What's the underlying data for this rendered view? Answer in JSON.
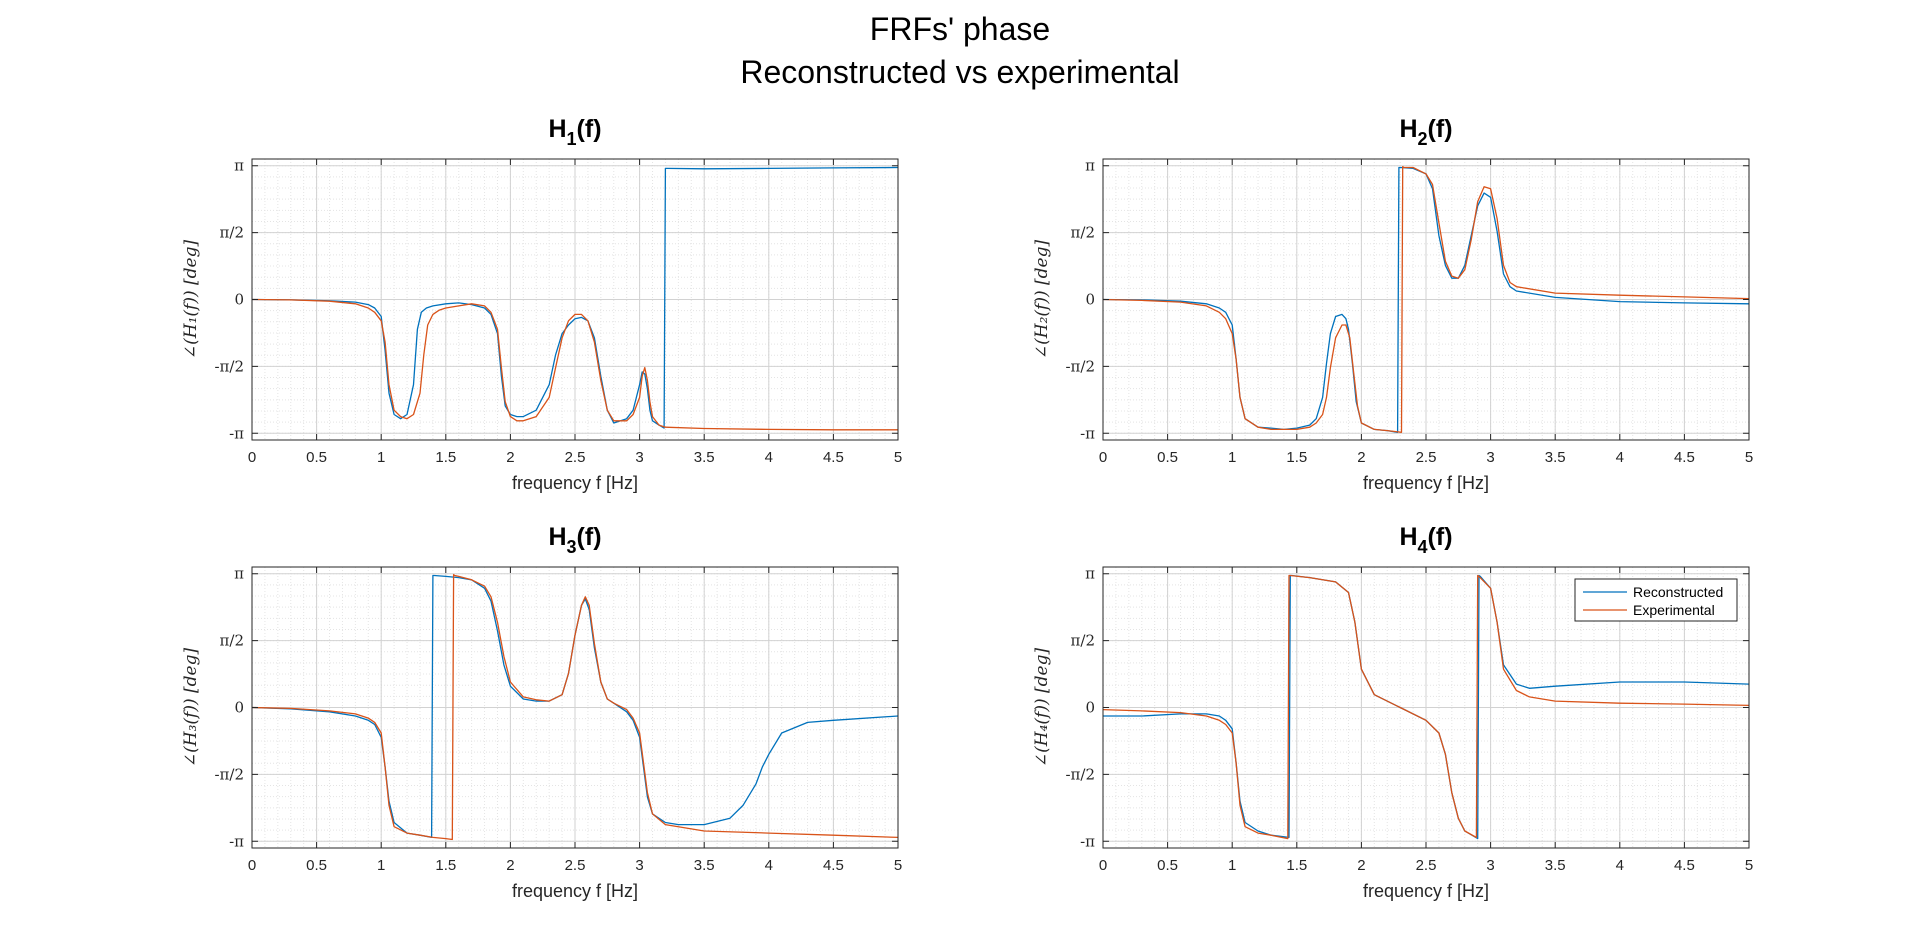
{
  "figure": {
    "title_line1": "FRFs' phase",
    "title_line2": "Reconstructed vs experimental"
  },
  "colors": {
    "reconstructed": "#0072BD",
    "experimental": "#D95319"
  },
  "legend": {
    "entries": [
      "Reconstructed",
      "Experimental"
    ],
    "location": "top-right of H4 panel"
  },
  "chart_data": [
    {
      "type": "line",
      "title_base": "H",
      "title_sub": "1",
      "title_tail": "(f)",
      "xlabel": "frequency f [Hz]",
      "ylabel": "∠(H₁(f))   [deg]",
      "xlim": [
        0,
        5
      ],
      "ylim": [
        -3.3,
        3.3
      ],
      "xticks": [
        0,
        0.5,
        1,
        1.5,
        2,
        2.5,
        3,
        3.5,
        4,
        4.5,
        5
      ],
      "xtick_labels": [
        "0",
        "0.5",
        "1",
        "1.5",
        "2",
        "2.5",
        "3",
        "3.5",
        "4",
        "4.5",
        "5"
      ],
      "yticks": [
        -3.1416,
        -1.5708,
        0,
        1.5708,
        3.1416
      ],
      "ytick_labels": [
        "-π",
        "-π/2",
        "0",
        "π/2",
        "π"
      ],
      "grid": true,
      "series": [
        {
          "name": "Reconstructed",
          "x": [
            0,
            0.3,
            0.6,
            0.8,
            0.9,
            0.95,
            1.0,
            1.03,
            1.06,
            1.1,
            1.15,
            1.2,
            1.25,
            1.28,
            1.31,
            1.35,
            1.4,
            1.5,
            1.6,
            1.7,
            1.8,
            1.85,
            1.9,
            1.93,
            1.96,
            2.0,
            2.05,
            2.1,
            2.2,
            2.3,
            2.35,
            2.4,
            2.45,
            2.5,
            2.55,
            2.6,
            2.65,
            2.7,
            2.75,
            2.8,
            2.9,
            2.95,
            3.0,
            3.02,
            3.04,
            3.06,
            3.08,
            3.1,
            3.15,
            3.19,
            3.2,
            3.21,
            3.5,
            4.0,
            4.5,
            5.0
          ],
          "y": [
            0,
            -0.01,
            -0.03,
            -0.06,
            -0.12,
            -0.2,
            -0.4,
            -1.2,
            -2.2,
            -2.7,
            -2.8,
            -2.7,
            -2.0,
            -0.7,
            -0.3,
            -0.2,
            -0.15,
            -0.1,
            -0.08,
            -0.12,
            -0.2,
            -0.35,
            -0.8,
            -1.8,
            -2.5,
            -2.7,
            -2.75,
            -2.75,
            -2.6,
            -2.0,
            -1.3,
            -0.8,
            -0.6,
            -0.45,
            -0.42,
            -0.5,
            -0.9,
            -1.8,
            -2.6,
            -2.9,
            -2.8,
            -2.6,
            -2.0,
            -1.7,
            -1.75,
            -2.1,
            -2.6,
            -2.85,
            -2.95,
            -3.02,
            3.08,
            3.08,
            3.07,
            3.08,
            3.09,
            3.1
          ]
        },
        {
          "name": "Experimental",
          "x": [
            0,
            0.3,
            0.6,
            0.8,
            0.9,
            0.95,
            1.0,
            1.03,
            1.06,
            1.1,
            1.15,
            1.2,
            1.25,
            1.3,
            1.33,
            1.36,
            1.4,
            1.45,
            1.5,
            1.6,
            1.7,
            1.8,
            1.85,
            1.9,
            1.93,
            1.96,
            2.0,
            2.05,
            2.1,
            2.2,
            2.3,
            2.35,
            2.4,
            2.45,
            2.5,
            2.55,
            2.6,
            2.65,
            2.7,
            2.75,
            2.8,
            2.9,
            2.95,
            3.0,
            3.02,
            3.04,
            3.06,
            3.08,
            3.1,
            3.15,
            3.2,
            3.5,
            4.0,
            4.5,
            5.0
          ],
          "y": [
            0,
            -0.01,
            -0.04,
            -0.1,
            -0.2,
            -0.3,
            -0.5,
            -1.0,
            -2.0,
            -2.6,
            -2.75,
            -2.8,
            -2.7,
            -2.2,
            -1.3,
            -0.6,
            -0.35,
            -0.25,
            -0.2,
            -0.15,
            -0.1,
            -0.15,
            -0.3,
            -0.7,
            -1.6,
            -2.4,
            -2.75,
            -2.85,
            -2.85,
            -2.75,
            -2.3,
            -1.6,
            -0.9,
            -0.5,
            -0.35,
            -0.35,
            -0.5,
            -1.0,
            -1.9,
            -2.6,
            -2.85,
            -2.85,
            -2.7,
            -2.3,
            -1.8,
            -1.6,
            -1.9,
            -2.4,
            -2.75,
            -2.95,
            -3.0,
            -3.03,
            -3.05,
            -3.06,
            -3.06
          ]
        }
      ]
    },
    {
      "type": "line",
      "title_base": "H",
      "title_sub": "2",
      "title_tail": "(f)",
      "xlabel": "frequency f [Hz]",
      "ylabel": "∠(H₂(f))   [deg]",
      "xlim": [
        0,
        5
      ],
      "ylim": [
        -3.3,
        3.3
      ],
      "xticks": [
        0,
        0.5,
        1,
        1.5,
        2,
        2.5,
        3,
        3.5,
        4,
        4.5,
        5
      ],
      "xtick_labels": [
        "0",
        "0.5",
        "1",
        "1.5",
        "2",
        "2.5",
        "3",
        "3.5",
        "4",
        "4.5",
        "5"
      ],
      "yticks": [
        -3.1416,
        -1.5708,
        0,
        1.5708,
        3.1416
      ],
      "ytick_labels": [
        "-π",
        "-π/2",
        "0",
        "π/2",
        "π"
      ],
      "grid": true,
      "series": [
        {
          "name": "Reconstructed",
          "x": [
            0,
            0.3,
            0.6,
            0.8,
            0.9,
            0.95,
            1.0,
            1.03,
            1.06,
            1.1,
            1.2,
            1.3,
            1.4,
            1.5,
            1.6,
            1.65,
            1.7,
            1.73,
            1.76,
            1.8,
            1.85,
            1.88,
            1.9,
            1.93,
            1.96,
            2.0,
            2.1,
            2.2,
            2.28,
            2.29,
            2.3,
            2.4,
            2.5,
            2.55,
            2.6,
            2.65,
            2.7,
            2.75,
            2.8,
            2.85,
            2.9,
            2.95,
            3.0,
            3.05,
            3.1,
            3.15,
            3.2,
            3.5,
            4.0,
            4.5,
            5.0
          ],
          "y": [
            0,
            -0.01,
            -0.04,
            -0.1,
            -0.2,
            -0.3,
            -0.6,
            -1.4,
            -2.3,
            -2.8,
            -3.0,
            -3.02,
            -3.05,
            -3.02,
            -2.95,
            -2.8,
            -2.3,
            -1.5,
            -0.8,
            -0.4,
            -0.35,
            -0.45,
            -0.7,
            -1.5,
            -2.4,
            -2.9,
            -3.05,
            -3.08,
            -3.12,
            3.1,
            3.1,
            3.08,
            2.95,
            2.6,
            1.5,
            0.8,
            0.5,
            0.5,
            0.8,
            1.5,
            2.2,
            2.5,
            2.4,
            1.6,
            0.6,
            0.3,
            0.2,
            0.05,
            -0.05,
            -0.08,
            -0.1
          ]
        },
        {
          "name": "Experimental",
          "x": [
            0,
            0.3,
            0.6,
            0.8,
            0.9,
            0.95,
            1.0,
            1.03,
            1.06,
            1.1,
            1.2,
            1.3,
            1.4,
            1.5,
            1.6,
            1.65,
            1.7,
            1.73,
            1.76,
            1.8,
            1.85,
            1.88,
            1.91,
            1.94,
            1.97,
            2.0,
            2.1,
            2.2,
            2.31,
            2.32,
            2.33,
            2.4,
            2.5,
            2.55,
            2.6,
            2.65,
            2.7,
            2.75,
            2.8,
            2.85,
            2.9,
            2.95,
            3.0,
            3.05,
            3.1,
            3.15,
            3.2,
            3.5,
            4.0,
            4.5,
            5.0
          ],
          "y": [
            0,
            -0.02,
            -0.06,
            -0.15,
            -0.3,
            -0.45,
            -0.8,
            -1.4,
            -2.3,
            -2.8,
            -3.0,
            -3.05,
            -3.05,
            -3.05,
            -3.0,
            -2.9,
            -2.7,
            -2.3,
            -1.6,
            -0.9,
            -0.6,
            -0.6,
            -0.9,
            -1.7,
            -2.5,
            -2.9,
            -3.05,
            -3.08,
            -3.12,
            3.12,
            3.1,
            3.1,
            2.95,
            2.7,
            1.8,
            0.9,
            0.55,
            0.5,
            0.7,
            1.4,
            2.3,
            2.65,
            2.6,
            1.9,
            0.8,
            0.4,
            0.3,
            0.15,
            0.1,
            0.06,
            0.02
          ]
        }
      ]
    },
    {
      "type": "line",
      "title_base": "H",
      "title_sub": "3",
      "title_tail": "(f)",
      "xlabel": "frequency f [Hz]",
      "ylabel": "∠(H₃(f))   [deg]",
      "xlim": [
        0,
        5
      ],
      "ylim": [
        -3.3,
        3.3
      ],
      "xticks": [
        0,
        0.5,
        1,
        1.5,
        2,
        2.5,
        3,
        3.5,
        4,
        4.5,
        5
      ],
      "xtick_labels": [
        "0",
        "0.5",
        "1",
        "1.5",
        "2",
        "2.5",
        "3",
        "3.5",
        "4",
        "4.5",
        "5"
      ],
      "yticks": [
        -3.1416,
        -1.5708,
        0,
        1.5708,
        3.1416
      ],
      "ytick_labels": [
        "-π",
        "-π/2",
        "0",
        "π/2",
        "π"
      ],
      "grid": true,
      "series": [
        {
          "name": "Reconstructed",
          "x": [
            0,
            0.3,
            0.6,
            0.8,
            0.9,
            0.95,
            1.0,
            1.03,
            1.06,
            1.1,
            1.2,
            1.3,
            1.39,
            1.4,
            1.41,
            1.5,
            1.6,
            1.7,
            1.8,
            1.85,
            1.9,
            1.95,
            2.0,
            2.1,
            2.2,
            2.3,
            2.4,
            2.45,
            2.5,
            2.55,
            2.58,
            2.61,
            2.65,
            2.7,
            2.75,
            2.8,
            2.9,
            2.95,
            3.0,
            3.03,
            3.06,
            3.1,
            3.2,
            3.3,
            3.5,
            3.7,
            3.8,
            3.9,
            3.95,
            4.0,
            4.1,
            4.3,
            4.5,
            5.0
          ],
          "y": [
            0,
            -0.03,
            -0.1,
            -0.2,
            -0.3,
            -0.4,
            -0.7,
            -1.4,
            -2.2,
            -2.7,
            -2.95,
            -3.0,
            -3.05,
            3.1,
            3.1,
            3.08,
            3.05,
            3.0,
            2.8,
            2.5,
            1.8,
            1.0,
            0.5,
            0.2,
            0.15,
            0.15,
            0.3,
            0.8,
            1.7,
            2.4,
            2.55,
            2.3,
            1.4,
            0.6,
            0.2,
            0.1,
            -0.1,
            -0.3,
            -0.7,
            -1.4,
            -2.1,
            -2.5,
            -2.7,
            -2.75,
            -2.75,
            -2.6,
            -2.3,
            -1.8,
            -1.4,
            -1.1,
            -0.6,
            -0.35,
            -0.3,
            -0.2
          ]
        },
        {
          "name": "Experimental",
          "x": [
            0,
            0.3,
            0.6,
            0.8,
            0.9,
            0.95,
            1.0,
            1.03,
            1.06,
            1.1,
            1.2,
            1.3,
            1.4,
            1.5,
            1.55,
            1.56,
            1.57,
            1.6,
            1.7,
            1.8,
            1.85,
            1.9,
            1.95,
            2.0,
            2.1,
            2.2,
            2.3,
            2.4,
            2.45,
            2.5,
            2.55,
            2.58,
            2.61,
            2.65,
            2.7,
            2.75,
            2.8,
            2.9,
            2.95,
            3.0,
            3.03,
            3.06,
            3.1,
            3.2,
            3.5,
            4.0,
            4.5,
            5.0
          ],
          "y": [
            0,
            -0.02,
            -0.08,
            -0.15,
            -0.25,
            -0.35,
            -0.6,
            -1.4,
            -2.3,
            -2.8,
            -2.95,
            -3.0,
            -3.05,
            -3.08,
            -3.1,
            3.12,
            3.1,
            3.08,
            3.0,
            2.85,
            2.6,
            2.0,
            1.2,
            0.6,
            0.25,
            0.18,
            0.15,
            0.3,
            0.8,
            1.7,
            2.4,
            2.6,
            2.4,
            1.5,
            0.6,
            0.2,
            0.1,
            -0.05,
            -0.25,
            -0.6,
            -1.3,
            -2.0,
            -2.5,
            -2.75,
            -2.9,
            -2.95,
            -3.0,
            -3.05
          ]
        }
      ]
    },
    {
      "type": "line",
      "title_base": "H",
      "title_sub": "4",
      "title_tail": "(f)",
      "xlabel": "frequency f [Hz]",
      "ylabel": "∠(H₄(f))   [deg]",
      "xlim": [
        0,
        5
      ],
      "ylim": [
        -3.3,
        3.3
      ],
      "xticks": [
        0,
        0.5,
        1,
        1.5,
        2,
        2.5,
        3,
        3.5,
        4,
        4.5,
        5
      ],
      "xtick_labels": [
        "0",
        "0.5",
        "1",
        "1.5",
        "2",
        "2.5",
        "3",
        "3.5",
        "4",
        "4.5",
        "5"
      ],
      "yticks": [
        -3.1416,
        -1.5708,
        0,
        1.5708,
        3.1416
      ],
      "ytick_labels": [
        "-π",
        "-π/2",
        "0",
        "π/2",
        "π"
      ],
      "grid": true,
      "series": [
        {
          "name": "Reconstructed",
          "x": [
            0,
            0.3,
            0.6,
            0.8,
            0.9,
            0.95,
            1.0,
            1.03,
            1.06,
            1.1,
            1.2,
            1.3,
            1.44,
            1.45,
            1.46,
            1.6,
            1.8,
            1.9,
            1.95,
            2.0,
            2.1,
            2.3,
            2.5,
            2.6,
            2.65,
            2.7,
            2.75,
            2.8,
            2.9,
            2.91,
            2.92,
            3.0,
            3.05,
            3.1,
            3.2,
            3.3,
            3.5,
            4.0,
            4.5,
            5.0
          ],
          "y": [
            -0.2,
            -0.2,
            -0.15,
            -0.15,
            -0.2,
            -0.3,
            -0.5,
            -1.3,
            -2.2,
            -2.7,
            -2.9,
            -3.0,
            -3.05,
            3.1,
            3.1,
            3.05,
            2.95,
            2.7,
            2.0,
            0.9,
            0.3,
            0.0,
            -0.3,
            -0.6,
            -1.1,
            -2.0,
            -2.6,
            -2.9,
            -3.08,
            3.1,
            3.08,
            2.8,
            2.0,
            1.0,
            0.55,
            0.45,
            0.5,
            0.6,
            0.6,
            0.55
          ]
        },
        {
          "name": "Experimental",
          "x": [
            0,
            0.3,
            0.6,
            0.8,
            0.9,
            0.95,
            1.0,
            1.03,
            1.06,
            1.1,
            1.2,
            1.3,
            1.43,
            1.44,
            1.45,
            1.6,
            1.8,
            1.9,
            1.95,
            2.0,
            2.1,
            2.3,
            2.5,
            2.6,
            2.65,
            2.7,
            2.75,
            2.8,
            2.89,
            2.9,
            2.91,
            3.0,
            3.05,
            3.1,
            3.2,
            3.3,
            3.5,
            4.0,
            4.5,
            5.0
          ],
          "y": [
            -0.05,
            -0.08,
            -0.12,
            -0.2,
            -0.3,
            -0.4,
            -0.6,
            -1.3,
            -2.3,
            -2.8,
            -2.95,
            -3.0,
            -3.08,
            3.1,
            3.1,
            3.05,
            2.95,
            2.7,
            2.0,
            0.9,
            0.3,
            0.0,
            -0.3,
            -0.6,
            -1.1,
            -2.0,
            -2.6,
            -2.9,
            -3.05,
            3.1,
            3.08,
            2.8,
            2.0,
            0.9,
            0.4,
            0.25,
            0.15,
            0.1,
            0.08,
            0.05
          ]
        }
      ]
    }
  ]
}
